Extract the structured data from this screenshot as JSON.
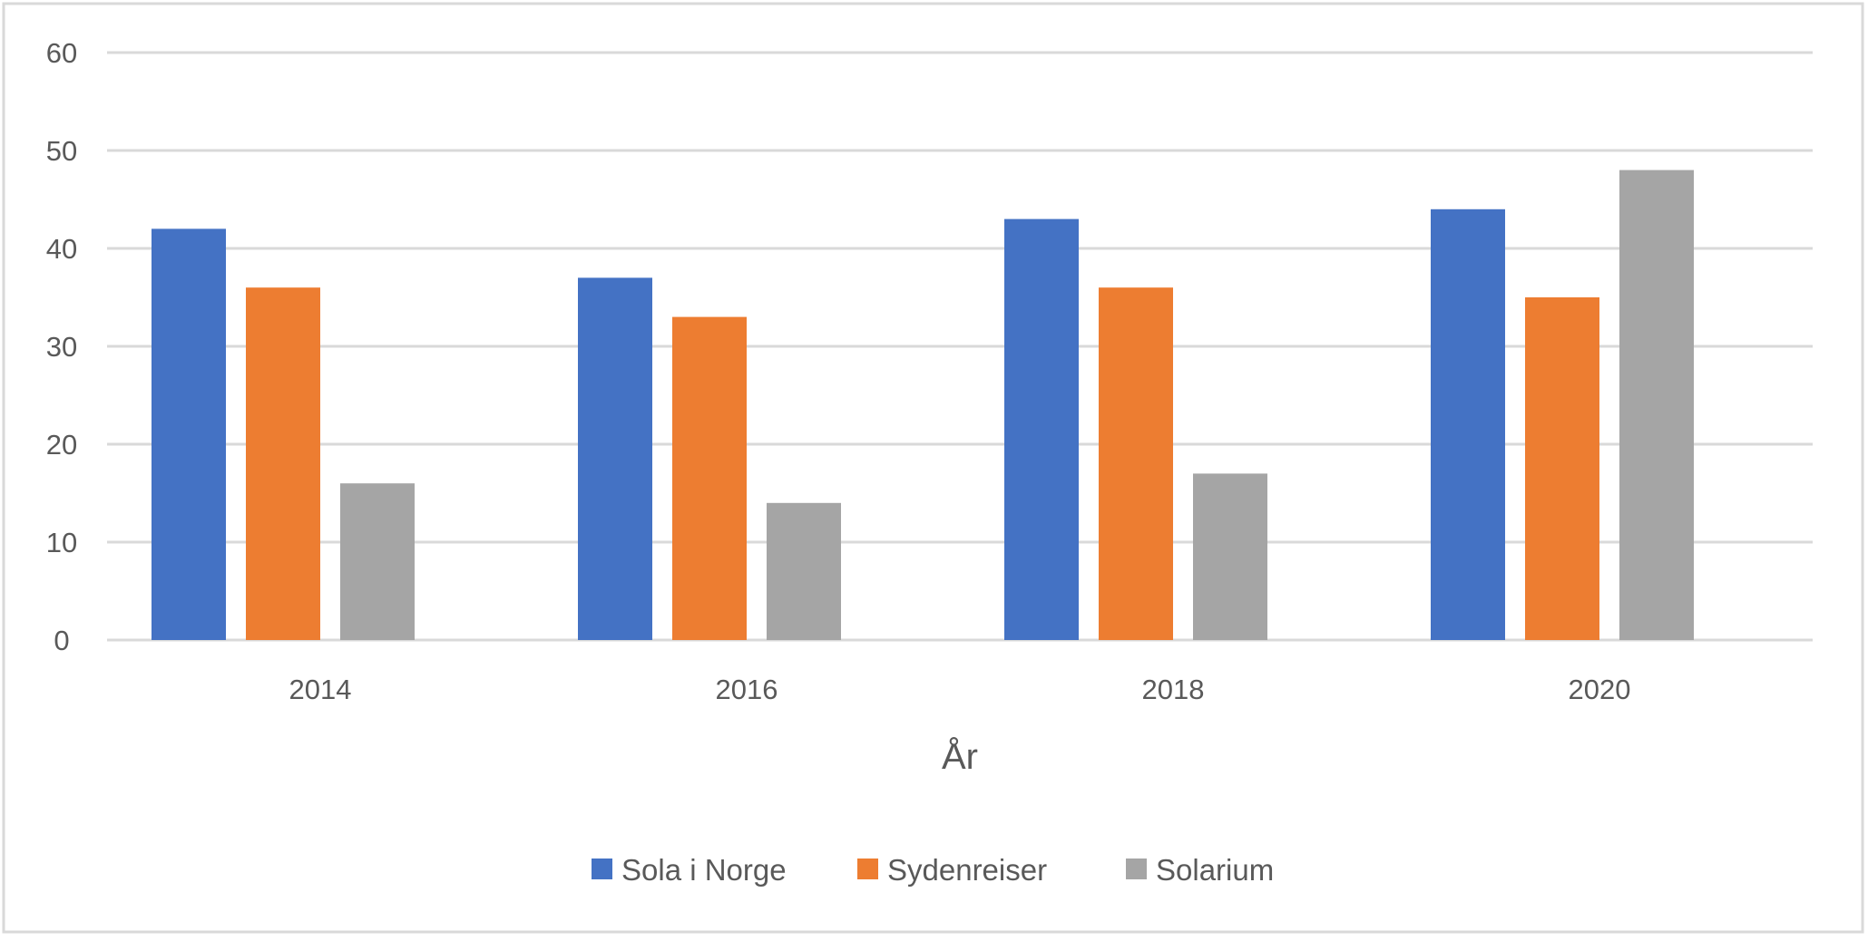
{
  "chart_data": {
    "type": "bar",
    "title": "",
    "xlabel": "År",
    "ylabel": "",
    "categories": [
      "2014",
      "2016",
      "2018",
      "2020"
    ],
    "series": [
      {
        "name": "Sola i Norge",
        "color": "#4472C4",
        "values": [
          42,
          37,
          43,
          44
        ]
      },
      {
        "name": "Sydenreiser",
        "color": "#ED7D31",
        "values": [
          36,
          33,
          36,
          35
        ]
      },
      {
        "name": "Solarium",
        "color": "#A5A5A5",
        "values": [
          16,
          14,
          17,
          48
        ]
      }
    ],
    "ylim": [
      0,
      60
    ],
    "yticks": [
      "0",
      "10",
      "20",
      "30",
      "40",
      "50",
      "60"
    ],
    "grid": true,
    "legend": "bottom"
  }
}
